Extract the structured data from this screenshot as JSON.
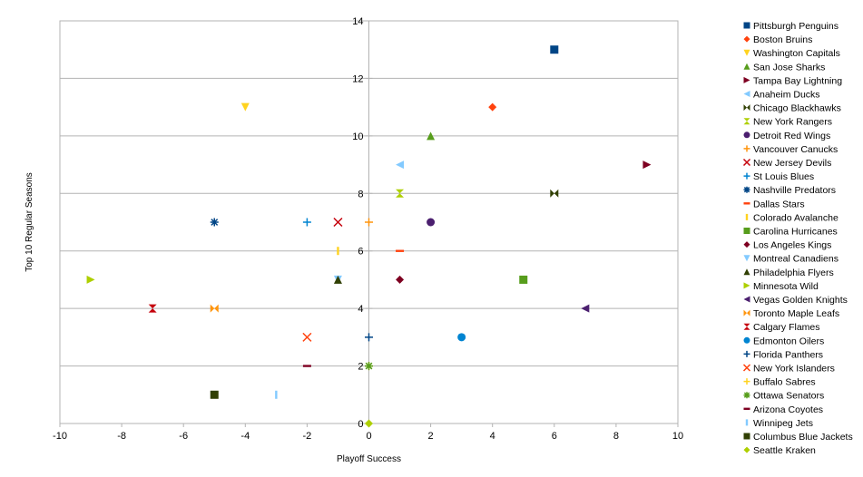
{
  "chart_data": {
    "type": "scatter",
    "title": "",
    "xlabel": "Playoff Success",
    "ylabel": "Top 10 Regular Seasons",
    "xlim": [
      -10,
      10
    ],
    "ylim": [
      0,
      14
    ],
    "xticks": [
      -10,
      -8,
      -6,
      -4,
      -2,
      0,
      2,
      4,
      6,
      8,
      10
    ],
    "yticks": [
      0,
      2,
      4,
      6,
      8,
      10,
      12,
      14
    ],
    "grid": "horizontal",
    "legend_position": "right",
    "series": [
      {
        "name": "Pittsburgh Penguins",
        "x": 6,
        "y": 13,
        "marker": "square",
        "color": "#004586"
      },
      {
        "name": "Boston Bruins",
        "x": 4,
        "y": 11,
        "marker": "diamond",
        "color": "#ff420e"
      },
      {
        "name": "Washington Capitals",
        "x": -4,
        "y": 11,
        "marker": "triangle-down",
        "color": "#ffd320"
      },
      {
        "name": "San Jose Sharks",
        "x": 2,
        "y": 10,
        "marker": "triangle-up",
        "color": "#579d1c"
      },
      {
        "name": "Tampa Bay Lightning",
        "x": 9,
        "y": 9,
        "marker": "triangle-right",
        "color": "#7e0021"
      },
      {
        "name": "Anaheim Ducks",
        "x": 1,
        "y": 9,
        "marker": "triangle-left",
        "color": "#83caff"
      },
      {
        "name": "Chicago Blackhawks",
        "x": 6,
        "y": 8,
        "marker": "bowtie",
        "color": "#314004"
      },
      {
        "name": "New York Rangers",
        "x": 1,
        "y": 8,
        "marker": "hourglass",
        "color": "#aecf00"
      },
      {
        "name": "Detroit Red Wings",
        "x": 2,
        "y": 7,
        "marker": "circle",
        "color": "#4b1f6f"
      },
      {
        "name": "Vancouver Canucks",
        "x": 0,
        "y": 7,
        "marker": "plus",
        "color": "#ff950e"
      },
      {
        "name": "New Jersey Devils",
        "x": -1,
        "y": 7,
        "marker": "x",
        "color": "#c5000b"
      },
      {
        "name": "St Louis Blues",
        "x": -2,
        "y": 7,
        "marker": "plus",
        "color": "#0084d1"
      },
      {
        "name": "Nashville Predators",
        "x": -5,
        "y": 7,
        "marker": "asterisk",
        "color": "#004586"
      },
      {
        "name": "Dallas Stars",
        "x": 1,
        "y": 6,
        "marker": "hbar",
        "color": "#ff420e"
      },
      {
        "name": "Colorado Avalanche",
        "x": -1,
        "y": 6,
        "marker": "vbar",
        "color": "#ffd320"
      },
      {
        "name": "Carolina Hurricanes",
        "x": 5,
        "y": 5,
        "marker": "square",
        "color": "#579d1c"
      },
      {
        "name": "Los Angeles Kings",
        "x": 1,
        "y": 5,
        "marker": "diamond",
        "color": "#7e0021"
      },
      {
        "name": "Montreal Canadiens",
        "x": -1,
        "y": 5,
        "marker": "triangle-down",
        "color": "#83caff"
      },
      {
        "name": "Philadelphia Flyers",
        "x": -1,
        "y": 5,
        "marker": "triangle-up",
        "color": "#314004"
      },
      {
        "name": "Minnesota Wild",
        "x": -9,
        "y": 5,
        "marker": "triangle-right",
        "color": "#aecf00"
      },
      {
        "name": "Vegas Golden Knights",
        "x": 7,
        "y": 4,
        "marker": "triangle-left",
        "color": "#4b1f6f"
      },
      {
        "name": "Toronto Maple Leafs",
        "x": -5,
        "y": 4,
        "marker": "bowtie",
        "color": "#ff950e"
      },
      {
        "name": "Calgary Flames",
        "x": -7,
        "y": 4,
        "marker": "hourglass",
        "color": "#c5000b"
      },
      {
        "name": "Edmonton Oilers",
        "x": 3,
        "y": 3,
        "marker": "circle",
        "color": "#0084d1"
      },
      {
        "name": "Florida Panthers",
        "x": 0,
        "y": 3,
        "marker": "plus",
        "color": "#004586"
      },
      {
        "name": "New York Islanders",
        "x": -2,
        "y": 3,
        "marker": "x",
        "color": "#ff420e"
      },
      {
        "name": "Buffalo Sabres",
        "x": 0,
        "y": 2,
        "marker": "plus",
        "color": "#ffd320"
      },
      {
        "name": "Ottawa Senators",
        "x": 0,
        "y": 2,
        "marker": "asterisk",
        "color": "#579d1c"
      },
      {
        "name": "Arizona Coyotes",
        "x": -2,
        "y": 2,
        "marker": "hbar",
        "color": "#7e0021"
      },
      {
        "name": "Winnipeg Jets",
        "x": -3,
        "y": 1,
        "marker": "vbar",
        "color": "#83caff"
      },
      {
        "name": "Columbus Blue Jackets",
        "x": -5,
        "y": 1,
        "marker": "square",
        "color": "#314004"
      },
      {
        "name": "Seattle Kraken",
        "x": 0,
        "y": 0,
        "marker": "diamond",
        "color": "#aecf00"
      }
    ]
  }
}
